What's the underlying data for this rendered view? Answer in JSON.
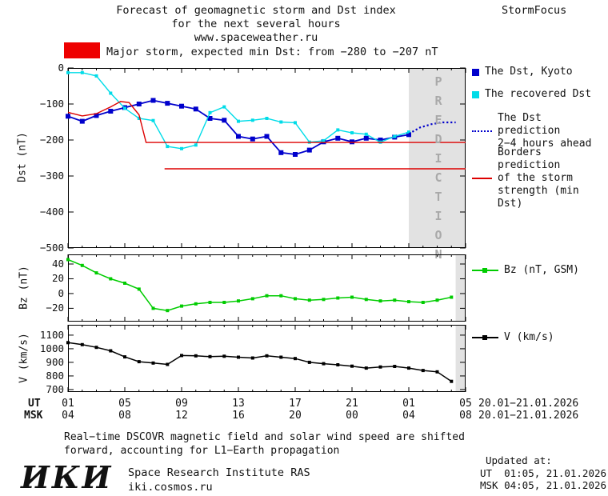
{
  "colors": {
    "alert": "#ee0000",
    "dst": "#0000cc",
    "recovered": "#00dce8",
    "borders": "#dd0000",
    "bz": "#00cc00",
    "v": "#000000",
    "prediction_band": "#e2e2e2",
    "prediction_text": "#a9a9a9"
  },
  "header": {
    "title_line1": "Forecast of geomagnetic storm and Dst index",
    "title_line2": "for the next several hours",
    "title_line3": "www.spaceweather.ru",
    "brand": "StormFocus"
  },
  "alert": {
    "label": "Major storm, expected min Dst: from −280 to −207 nT"
  },
  "legend": {
    "dst_kyoto": "The Dst, Kyoto",
    "recovered": "The recovered Dst",
    "prediction_line1": "The Dst prediction",
    "prediction_line2": "2−4 hours ahead",
    "borders_line1": "Borders prediction",
    "borders_line2": "of the storm",
    "borders_line3": "strength (min Dst)",
    "bz": "Bz (nT, GSM)",
    "v": "V (km/s)"
  },
  "prediction_label": "PREDICTION",
  "xaxis": {
    "ut_label": "UT",
    "msk_label": "MSK",
    "ut_ticks": [
      "01",
      "05",
      "09",
      "13",
      "17",
      "21",
      "01",
      "05"
    ],
    "msk_ticks": [
      "04",
      "08",
      "12",
      "16",
      "20",
      "00",
      "04",
      "08"
    ],
    "ut_date": "20.01−21.01.2026",
    "msk_date": "20.01−21.01.2026"
  },
  "footer": {
    "note_line1": "Real−time DSCOVR magnetic field and solar wind speed are shifted",
    "note_line2": "forward, accounting for L1−Earth propagation",
    "updated_label": "Updated at:",
    "updated_ut": "UT  01:05, 21.01.2026",
    "updated_msk": "MSK 04:05, 21.01.2026",
    "logo": "ИКИ",
    "institute": "Space Research Institute RAS",
    "site": "iki.cosmos.ru"
  },
  "chart_data": [
    {
      "type": "line",
      "panel": "dst",
      "title": "Forecast of geomagnetic storm and Dst index for the next several hours",
      "ylabel": "Dst (nT)",
      "ylim": [
        -500,
        0
      ],
      "yticks": [
        0,
        -100,
        -200,
        -300,
        -400,
        -500
      ],
      "ytick_labels": [
        "0",
        "−100",
        "−200",
        "−300",
        "−400",
        "−500"
      ],
      "x_hours_range": [
        1,
        29
      ],
      "xticks_hours": [
        1,
        5,
        9,
        13,
        17,
        21,
        25,
        29
      ],
      "x_axis_note": "UT hours from 01 on 20.01.2026 to 05 on 21.01.2026",
      "legend_position": "right",
      "grid": false,
      "prediction_band_hours": [
        25,
        29
      ],
      "series": [
        {
          "name": "The Dst, Kyoto",
          "color": "#0000cc",
          "marker": "square",
          "marker_size": 6,
          "width": 1.8,
          "x": [
            1,
            2,
            3,
            4,
            5,
            6,
            7,
            8,
            9,
            10,
            11,
            12,
            13,
            14,
            15,
            16,
            17,
            18,
            19,
            20,
            21,
            22,
            23,
            24,
            25
          ],
          "values": [
            -134,
            -148,
            -132,
            -120,
            -110,
            -100,
            -90,
            -98,
            -106,
            -114,
            -140,
            -145,
            -190,
            -197,
            -190,
            -235,
            -240,
            -228,
            -205,
            -195,
            -205,
            -195,
            -200,
            -192,
            -185
          ]
        },
        {
          "name": "The recovered Dst",
          "color": "#00dce8",
          "marker": "square",
          "marker_size": 4,
          "width": 1.4,
          "x": [
            1,
            2,
            3,
            4,
            5,
            6,
            7,
            8,
            9,
            10,
            11,
            12,
            13,
            14,
            15,
            16,
            17,
            18,
            19,
            20,
            21,
            22,
            23,
            24,
            25
          ],
          "values": [
            -13,
            -13,
            -22,
            -70,
            -112,
            -140,
            -146,
            -218,
            -224,
            -214,
            -124,
            -108,
            -148,
            -145,
            -140,
            -150,
            -152,
            -206,
            -202,
            -172,
            -180,
            -184,
            -206,
            -190,
            -178
          ]
        },
        {
          "name": "The Dst prediction 2−4 hours ahead",
          "color": "#0000cc",
          "style": "dotted",
          "width": 2.2,
          "x": [
            25,
            25.8,
            26.6,
            27.4,
            28.3
          ],
          "values": [
            -183,
            -165,
            -156,
            -151,
            -151
          ]
        },
        {
          "name": "Borders prediction of the storm strength — upper border (min Dst −207)",
          "color": "#dd0000",
          "width": 1.4,
          "x": [
            1,
            2,
            3,
            4,
            4.7,
            5.3,
            6,
            6.5,
            7,
            29
          ],
          "values": [
            -123,
            -133,
            -127,
            -108,
            -93,
            -96,
            -130,
            -207,
            -207,
            -207
          ]
        },
        {
          "name": "Borders prediction of the storm strength — lower border (min Dst −280)",
          "color": "#dd0000",
          "width": 1.4,
          "x": [
            7.8,
            29
          ],
          "values": [
            -280,
            -280
          ]
        }
      ]
    },
    {
      "type": "line",
      "panel": "bz",
      "ylabel": "Bz (nT)",
      "ylim": [
        -38,
        53
      ],
      "yticks": [
        40,
        20,
        0,
        -20
      ],
      "ytick_labels": [
        "40",
        "20",
        "0",
        "−20"
      ],
      "x_hours_range": [
        1,
        29
      ],
      "xticks_hours": [
        1,
        5,
        9,
        13,
        17,
        21,
        25,
        29
      ],
      "grid": false,
      "prediction_band_hours": [
        28.3,
        29
      ],
      "series": [
        {
          "name": "Bz (nT, GSM)",
          "color": "#00cc00",
          "marker": "square",
          "marker_size": 4,
          "width": 1.5,
          "x": [
            1,
            2,
            3,
            4,
            5,
            6,
            7,
            8,
            9,
            10,
            11,
            12,
            13,
            14,
            15,
            16,
            17,
            18,
            19,
            20,
            21,
            22,
            23,
            24,
            25,
            26,
            27,
            28
          ],
          "values": [
            46,
            38,
            28,
            20,
            14,
            6,
            -20,
            -23,
            -17,
            -14,
            -12,
            -12,
            -10,
            -7,
            -3,
            -3,
            -7,
            -9,
            -8,
            -6,
            -5,
            -8,
            -10,
            -9,
            -11,
            -12,
            -9,
            -5
          ]
        }
      ]
    },
    {
      "type": "line",
      "panel": "v",
      "ylabel": "V (km/s)",
      "ylim": [
        682,
        1176
      ],
      "yticks": [
        1100,
        1000,
        900,
        800,
        700
      ],
      "ytick_labels": [
        "1100",
        "1000",
        "900",
        "800",
        "700"
      ],
      "x_hours_range": [
        1,
        29
      ],
      "xticks_hours": [
        1,
        5,
        9,
        13,
        17,
        21,
        25,
        29
      ],
      "grid": false,
      "prediction_band_hours": [
        28.3,
        29
      ],
      "series": [
        {
          "name": "V (km/s)",
          "color": "#000000",
          "marker": "square",
          "marker_size": 4,
          "width": 1.5,
          "x": [
            1,
            2,
            3,
            4,
            5,
            6,
            7,
            8,
            9,
            10,
            11,
            12,
            13,
            14,
            15,
            16,
            17,
            18,
            19,
            20,
            21,
            22,
            23,
            24,
            25,
            26,
            27,
            28
          ],
          "values": [
            1045,
            1030,
            1010,
            985,
            940,
            905,
            895,
            885,
            950,
            948,
            942,
            945,
            938,
            932,
            948,
            938,
            928,
            900,
            890,
            882,
            872,
            858,
            866,
            870,
            858,
            840,
            830,
            760
          ]
        }
      ]
    }
  ]
}
